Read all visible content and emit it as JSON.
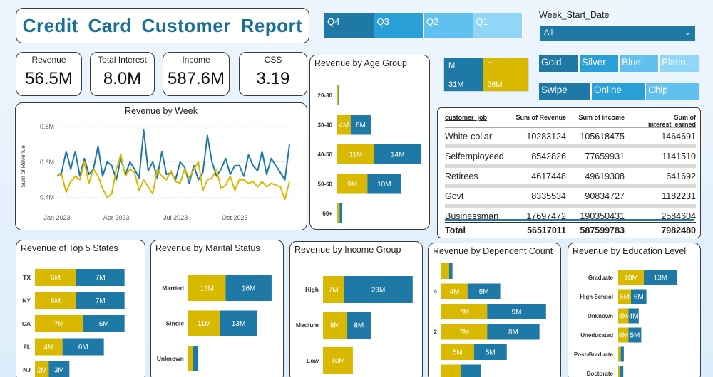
{
  "title": "Credit Card Customer Report",
  "colors": {
    "blue": "#1f79a6",
    "gold": "#d9b800",
    "light_blue": "#2aa0d8",
    "lighter_blue": "#60c0ef",
    "lightest_blue": "#90d6f7"
  },
  "kpis": [
    {
      "label": "Revenue",
      "value": "56.5M"
    },
    {
      "label": "Total Interest",
      "value": "8.0M"
    },
    {
      "label": "Income",
      "value": "587.6M"
    },
    {
      "label": "CSS",
      "value": "3.19"
    }
  ],
  "quarter_slicer": [
    "Q4",
    "Q3",
    "Q2",
    "Q1"
  ],
  "week_start_date": {
    "label": "Week_Start_Date",
    "selected": "All"
  },
  "card_category_slicer": [
    "Gold",
    "Silver",
    "Blue",
    "Platin..."
  ],
  "use_chip_slicer": [
    "Swipe",
    "Online",
    "Chip"
  ],
  "gender": [
    {
      "label": "M",
      "value": "31M"
    },
    {
      "label": "F",
      "value": "26M"
    }
  ],
  "table": {
    "headers": [
      "customer_job",
      "Sum of Revenue",
      "Sum of income",
      "Sum of interest_earned"
    ],
    "rows": [
      [
        "White-collar",
        "10283124",
        "105618475",
        "1464691"
      ],
      [
        "Selfemployeed",
        "8542826",
        "77659931",
        "1141510"
      ],
      [
        "Retirees",
        "4617448",
        "49619308",
        "641692"
      ],
      [
        "Govt",
        "8335534",
        "90834727",
        "1182231"
      ],
      [
        "Businessman",
        "17697472",
        "190350431",
        "2584604"
      ]
    ],
    "total": [
      "Total",
      "56517011",
      "587599783",
      "7982480"
    ]
  },
  "chart_data": [
    {
      "id": "revenue_by_week",
      "type": "line",
      "title": "Revenue by Week",
      "ylabel": "Sum of Revenue",
      "ylim": [
        0.33,
        0.82
      ],
      "yticks": [
        {
          "value": 0.4,
          "label": "0.4M"
        },
        {
          "value": 0.6,
          "label": "0.6M"
        },
        {
          "value": 0.8,
          "label": "0.8M"
        }
      ],
      "xticks": [
        {
          "index": 0,
          "label": "Jan 2023"
        },
        {
          "index": 13,
          "label": "Apr 2023"
        },
        {
          "index": 26,
          "label": "Jul 2023"
        },
        {
          "index": 39,
          "label": "Oct 2023"
        }
      ],
      "series": [
        {
          "color": "#1f79a6",
          "values": [
            0.52,
            0.54,
            0.66,
            0.56,
            0.66,
            0.52,
            0.62,
            0.53,
            0.56,
            0.69,
            0.52,
            0.6,
            0.58,
            0.5,
            0.62,
            0.53,
            0.6,
            0.56,
            0.51,
            0.78,
            0.55,
            0.6,
            0.51,
            0.66,
            0.53,
            0.54,
            0.5,
            0.6,
            0.57,
            0.48,
            0.58,
            0.5,
            0.54,
            0.75,
            0.6,
            0.52,
            0.56,
            0.62,
            0.53,
            0.58,
            0.58,
            0.52,
            0.64,
            0.58,
            0.55,
            0.66,
            0.53,
            0.62,
            0.58,
            0.54,
            0.5,
            0.7
          ]
        },
        {
          "color": "#d9b800",
          "values": [
            0.52,
            0.53,
            0.43,
            0.49,
            0.52,
            0.5,
            0.6,
            0.48,
            0.56,
            0.52,
            0.45,
            0.4,
            0.42,
            0.56,
            0.64,
            0.52,
            0.56,
            0.54,
            0.44,
            0.5,
            0.46,
            0.42,
            0.56,
            0.52,
            0.5,
            0.55,
            0.49,
            0.48,
            0.56,
            0.51,
            0.56,
            0.6,
            0.44,
            0.5,
            0.51,
            0.56,
            0.45,
            0.47,
            0.52,
            0.44,
            0.5,
            0.5,
            0.48,
            0.49,
            0.46,
            0.49,
            0.46,
            0.48,
            0.47,
            0.46,
            0.39,
            0.49
          ]
        }
      ]
    },
    {
      "id": "revenue_by_age_group",
      "type": "bar",
      "orientation": "horizontal",
      "stacked": true,
      "title": "Revenue by Age Group",
      "xlim": [
        0,
        27
      ],
      "categories": [
        "20-30",
        "30-40",
        "40-50",
        "50-60",
        "60+"
      ],
      "series": [
        {
          "color": "#d9b800",
          "values": [
            0.3,
            4,
            11,
            9,
            0.7
          ],
          "labels": [
            "",
            "4M",
            "11M",
            "9M",
            ""
          ]
        },
        {
          "color": "#1f79a6",
          "values": [
            0.3,
            6,
            14,
            10,
            0.8
          ],
          "labels": [
            "",
            "6M",
            "14M",
            "10M",
            ""
          ]
        }
      ]
    },
    {
      "id": "revenue_by_top5_states",
      "type": "bar",
      "orientation": "horizontal",
      "stacked": true,
      "title": "Revenue of Top 5 States",
      "xlim": [
        0,
        15
      ],
      "categories": [
        "TX",
        "NY",
        "CA",
        "FL",
        "NJ"
      ],
      "series": [
        {
          "color": "#d9b800",
          "values": [
            6,
            6,
            7,
            4,
            2
          ],
          "labels": [
            "6M",
            "6M",
            "7M",
            "4M",
            "2M"
          ]
        },
        {
          "color": "#1f79a6",
          "values": [
            7,
            7,
            6,
            6,
            3
          ],
          "labels": [
            "7M",
            "7M",
            "6M",
            "6M",
            "3M"
          ]
        }
      ]
    },
    {
      "id": "revenue_by_marital_status",
      "type": "bar",
      "orientation": "horizontal",
      "stacked": true,
      "title": "Revenue by Marital Status",
      "xlim": [
        0,
        31
      ],
      "categories": [
        "Married",
        "Single",
        "Unknown"
      ],
      "series": [
        {
          "color": "#d9b800",
          "values": [
            13,
            11,
            1.5
          ],
          "labels": [
            "13M",
            "11M",
            ""
          ]
        },
        {
          "color": "#1f79a6",
          "values": [
            16,
            13,
            2
          ],
          "labels": [
            "16M",
            "13M",
            ""
          ]
        }
      ]
    },
    {
      "id": "revenue_by_income_group",
      "type": "bar",
      "orientation": "horizontal",
      "stacked": true,
      "title": "Revenue by Income Group",
      "xlim": [
        0,
        31
      ],
      "categories": [
        "High",
        "Medium",
        "Low"
      ],
      "series": [
        {
          "color": "#d9b800",
          "values": [
            7,
            8,
            10
          ],
          "labels": [
            "7M",
            "8M",
            "10M"
          ]
        },
        {
          "color": "#1f79a6",
          "values": [
            23,
            8,
            0
          ],
          "labels": [
            "23M",
            "8M",
            ""
          ]
        }
      ]
    },
    {
      "id": "revenue_by_dependent_count",
      "type": "bar",
      "orientation": "horizontal",
      "stacked": true,
      "title": "Revenue by Dependent Count",
      "xlim": [
        0,
        17
      ],
      "categories": [
        "5",
        "4",
        "3",
        "2",
        "1",
        "0"
      ],
      "tick_labels": [
        "",
        "4",
        "",
        "2",
        "",
        ""
      ],
      "series": [
        {
          "color": "#d9b800",
          "values": [
            1.2,
            4,
            7,
            7,
            5,
            3
          ],
          "labels": [
            "",
            "4M",
            "7M",
            "7M",
            "5M",
            ""
          ]
        },
        {
          "color": "#1f79a6",
          "values": [
            0.5,
            5,
            9,
            8,
            5,
            3
          ],
          "labels": [
            "",
            "5M",
            "9M",
            "8M",
            "5M",
            ""
          ]
        }
      ]
    },
    {
      "id": "revenue_by_education_level",
      "type": "bar",
      "orientation": "horizontal",
      "stacked": true,
      "title": "Revenue by Education Level",
      "xlim": [
        0,
        30
      ],
      "categories": [
        "Graduate",
        "High School",
        "Unknown",
        "Uneducated",
        "Post-Graduate",
        "Doctorate"
      ],
      "series": [
        {
          "color": "#d9b800",
          "values": [
            10,
            5,
            4,
            4,
            1,
            0.8
          ],
          "labels": [
            "10M",
            "5M",
            "4M",
            "4M",
            "",
            ""
          ]
        },
        {
          "color": "#1f79a6",
          "values": [
            13,
            6,
            4,
            5,
            1.2,
            1.2
          ],
          "labels": [
            "13M",
            "6M",
            "4M",
            "5M",
            "",
            ""
          ]
        }
      ]
    }
  ]
}
